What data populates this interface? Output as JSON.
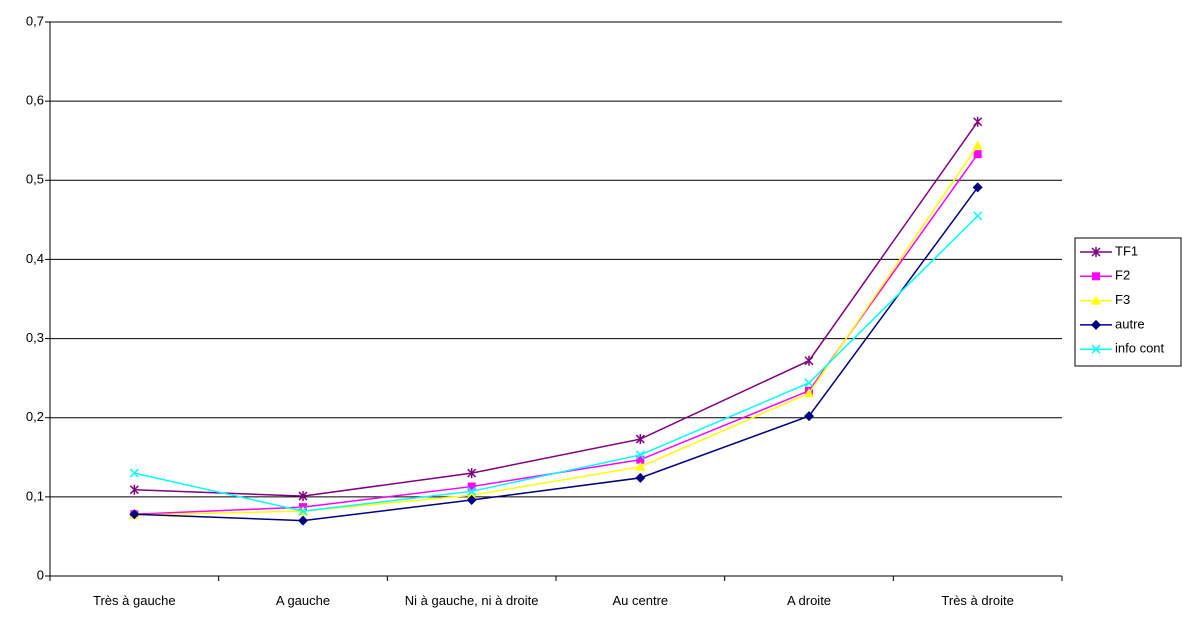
{
  "chart_data": {
    "type": "line",
    "categories": [
      "Très à gauche",
      "A gauche",
      "Ni à gauche, ni à droite",
      "Au centre",
      "A droite",
      "Très à droite"
    ],
    "series": [
      {
        "name": "TF1",
        "color": "#800080",
        "marker": "star",
        "values": [
          0.109,
          0.101,
          0.13,
          0.173,
          0.272,
          0.574
        ]
      },
      {
        "name": "F2",
        "color": "#ff00ff",
        "marker": "square",
        "values": [
          0.078,
          0.087,
          0.113,
          0.147,
          0.234,
          0.533
        ]
      },
      {
        "name": "F3",
        "color": "#ffff00",
        "marker": "triangle",
        "values": [
          0.077,
          0.082,
          0.102,
          0.138,
          0.231,
          0.544
        ]
      },
      {
        "name": "autre",
        "color": "#000080",
        "marker": "diamond",
        "values": [
          0.078,
          0.07,
          0.096,
          0.124,
          0.202,
          0.491
        ]
      },
      {
        "name": "info cont",
        "color": "#00ffff",
        "marker": "x",
        "values": [
          0.13,
          0.082,
          0.107,
          0.153,
          0.244,
          0.455
        ]
      }
    ],
    "ylim": [
      0,
      0.7
    ],
    "yticks": [
      0,
      {
        "value": 0.1,
        "label": "0,1"
      },
      {
        "value": 0.2,
        "label": "0,2"
      },
      {
        "value": 0.3,
        "label": "0,3"
      },
      {
        "value": 0.4,
        "label": "0,4"
      },
      {
        "value": 0.5,
        "label": "0,5"
      },
      {
        "value": 0.6,
        "label": "0,6"
      },
      {
        "value": 0.7,
        "label": "0,7"
      }
    ],
    "grid": true,
    "legend": "right"
  }
}
